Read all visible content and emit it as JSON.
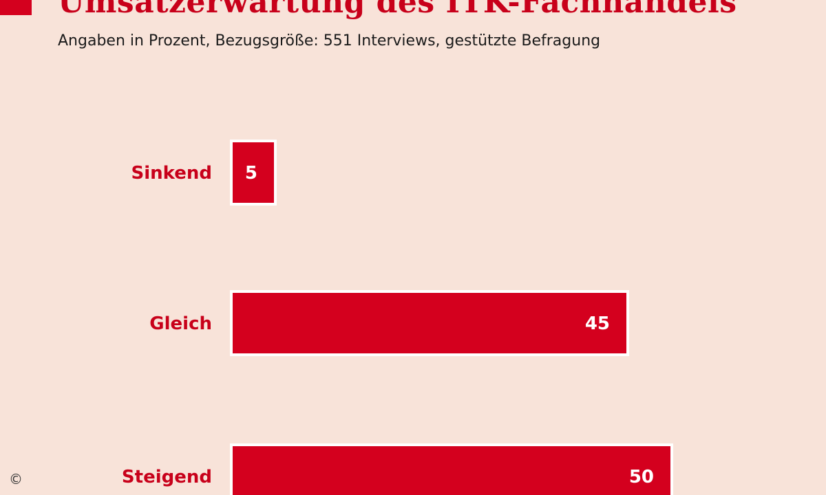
{
  "header": {
    "title": "Umsatzerwartung des ITK-Fachhandels",
    "subtitle": "Angaben in Prozent, Bezugsgröße: 551 Interviews, gestützte Befragung"
  },
  "footer": {
    "copyright": "©"
  },
  "colors": {
    "accent": "#d4001e",
    "bar": "#d4001e",
    "bar_outline": "#ffffff",
    "label": "#c8001a",
    "background": "#f8e3d9"
  },
  "chart_data": {
    "type": "bar",
    "orientation": "horizontal",
    "title": "Umsatzerwartung des ITK-Fachhandels",
    "subtitle": "Angaben in Prozent, Bezugsgröße: 551 Interviews, gestützte Befragung",
    "categories": [
      "Sinkend",
      "Gleich",
      "Steigend"
    ],
    "values": [
      5,
      45,
      50
    ],
    "xlabel": "",
    "ylabel": "",
    "grid": false,
    "legend": "none"
  }
}
